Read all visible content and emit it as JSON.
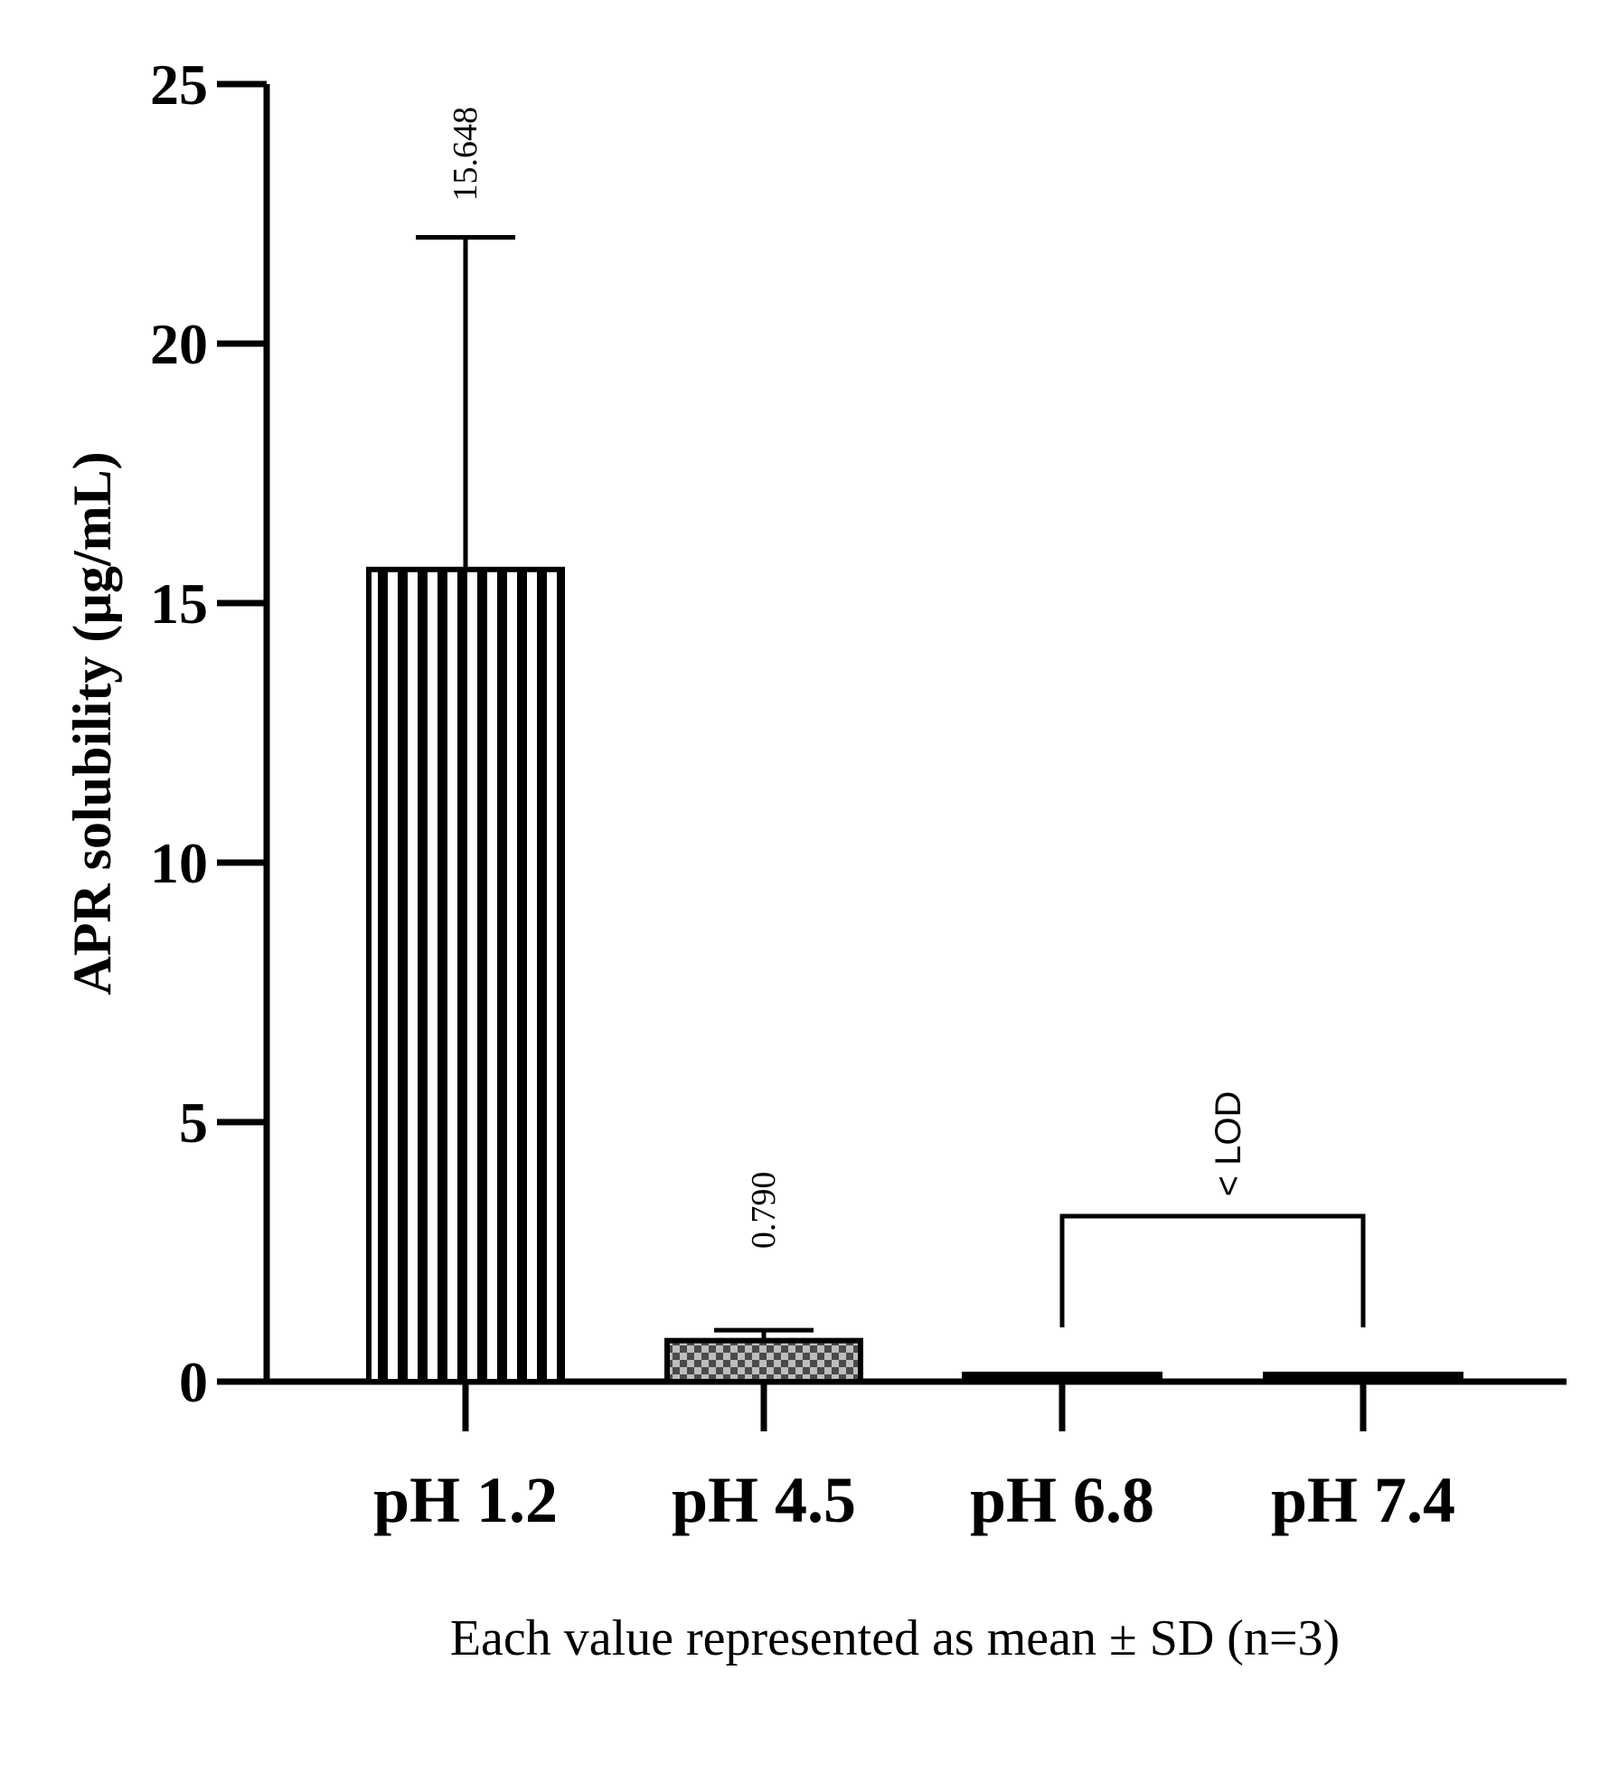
{
  "chart_data": {
    "type": "bar",
    "ylabel": "APR solubility (µg/mL)",
    "xlabel": "",
    "ylim": [
      0,
      25
    ],
    "yticks": [
      "0",
      "5",
      "10",
      "15",
      "20",
      "25"
    ],
    "categories": [
      "pH 1.2",
      "pH 4.5",
      "pH 6.8",
      "pH 7.4"
    ],
    "values": [
      15.648,
      0.79,
      0,
      0
    ],
    "error_sd": [
      6.4,
      0.2,
      0,
      0
    ],
    "data_labels": [
      "15.648",
      "0.790",
      "",
      ""
    ],
    "bar_patterns": [
      "vertical-stripes",
      "checkerboard",
      "none",
      "none"
    ],
    "annotation": "< LOD",
    "footnote": "Each value represented as mean ± SD (n=3)",
    "grid": false,
    "legend": "none"
  },
  "colors": {
    "ink": "#000000",
    "background": "#ffffff",
    "checker_dark": "#4a4a4a",
    "checker_light": "#bdbdbd"
  }
}
